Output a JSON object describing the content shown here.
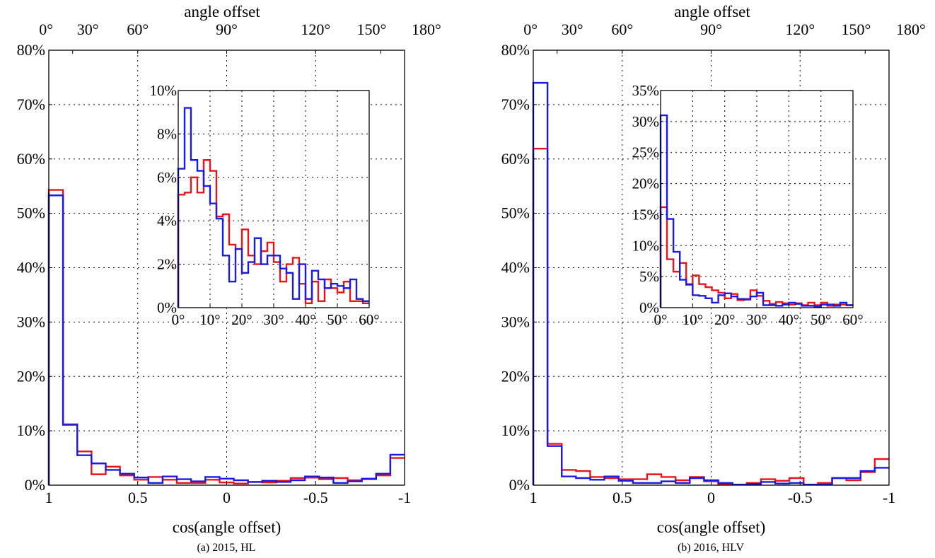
{
  "colors": {
    "red": "#e8141b",
    "blue": "#1a1ae6"
  },
  "chart_data": [
    {
      "type": "line",
      "caption": "(a) 2015, HL",
      "xlabel": "cos(angle offset)",
      "top_xlabel": "angle offset",
      "xlim": [
        1,
        -1
      ],
      "ylim": [
        0,
        80
      ],
      "x_ticks": [
        "1",
        "0.5",
        "0",
        "-0.5",
        "-1"
      ],
      "x_tick_values": [
        1,
        0.5,
        0,
        -0.5,
        -1
      ],
      "top_ticks": [
        "0°",
        "30°",
        "60°",
        "90°",
        "120°",
        "150°",
        "180°"
      ],
      "top_tick_degrees": [
        0,
        30,
        60,
        90,
        120,
        150,
        180
      ],
      "y_ticks": [
        "0%",
        "10%",
        "20%",
        "30%",
        "40%",
        "50%",
        "60%",
        "70%",
        "80%"
      ],
      "y_tick_values": [
        0,
        10,
        20,
        30,
        40,
        50,
        60,
        70,
        80
      ],
      "bin_width": 0.08,
      "grid": true,
      "series": [
        {
          "color": "red",
          "values": [
            54.3,
            11.2,
            6.2,
            2.0,
            3.4,
            1.8,
            1.0,
            1.5,
            1.0,
            0.4,
            0.4,
            1.0,
            0.5,
            0.3,
            0.6,
            0.5,
            0.8,
            1.3,
            1.4,
            1.1,
            1.3,
            0.9,
            1.1,
            1.8,
            5.0
          ]
        },
        {
          "color": "blue",
          "values": [
            53.3,
            11.1,
            5.5,
            4.0,
            2.8,
            2.1,
            1.4,
            0.4,
            1.6,
            1.1,
            0.7,
            1.5,
            1.2,
            0.9,
            0.6,
            0.8,
            0.6,
            0.9,
            1.6,
            1.4,
            0.4,
            0.7,
            1.2,
            2.1,
            5.6
          ]
        }
      ],
      "inset": {
        "xlim": [
          0,
          60
        ],
        "ylim": [
          0,
          10
        ],
        "x_ticks": [
          "0°",
          "10°",
          "20°",
          "30°",
          "40°",
          "50°",
          "60°"
        ],
        "x_tick_values": [
          0,
          10,
          20,
          30,
          40,
          50,
          60
        ],
        "y_ticks": [
          "0%",
          "2%",
          "4%",
          "6%",
          "8%",
          "10%"
        ],
        "y_tick_values": [
          0,
          2,
          4,
          6,
          8,
          10
        ],
        "bin_width": 2,
        "series": [
          {
            "color": "red",
            "values": [
              5.2,
              5.3,
              6.0,
              5.3,
              6.8,
              6.3,
              4.2,
              4.3,
              2.9,
              2.7,
              3.6,
              2.4,
              2.0,
              2.6,
              3.0,
              2.1,
              1.2,
              2.0,
              2.3,
              1.1,
              0.2,
              1.2,
              0.3,
              1.3,
              0.9,
              0.7,
              1.2,
              0.3,
              0.3,
              0.2
            ]
          },
          {
            "color": "blue",
            "values": [
              6.4,
              9.2,
              6.8,
              6.3,
              5.6,
              4.8,
              4.1,
              2.4,
              1.2,
              2.7,
              1.6,
              2.1,
              3.2,
              2.0,
              2.4,
              2.4,
              1.8,
              1.6,
              0.4,
              2.0,
              0.4,
              1.7,
              1.3,
              0.9,
              1.1,
              1.0,
              0.9,
              1.3,
              0.4,
              0.3
            ]
          }
        ]
      }
    },
    {
      "type": "line",
      "caption": "(b) 2016, HLV",
      "xlabel": "cos(angle offset)",
      "top_xlabel": "angle offset",
      "xlim": [
        1,
        -1
      ],
      "ylim": [
        0,
        80
      ],
      "x_ticks": [
        "1",
        "0.5",
        "0",
        "-0.5",
        "-1"
      ],
      "x_tick_values": [
        1,
        0.5,
        0,
        -0.5,
        -1
      ],
      "top_ticks": [
        "0°",
        "30°",
        "60°",
        "90°",
        "120°",
        "150°",
        "180°"
      ],
      "top_tick_degrees": [
        0,
        30,
        60,
        90,
        120,
        150,
        180
      ],
      "y_ticks": [
        "0%",
        "10%",
        "20%",
        "30%",
        "40%",
        "50%",
        "60%",
        "70%",
        "80%"
      ],
      "y_tick_values": [
        0,
        10,
        20,
        30,
        40,
        50,
        60,
        70,
        80
      ],
      "bin_width": 0.08,
      "grid": true,
      "series": [
        {
          "color": "red",
          "values": [
            61.9,
            7.6,
            2.8,
            2.6,
            1.5,
            1.3,
            1.1,
            1.1,
            2.0,
            1.5,
            0.9,
            1.5,
            0.7,
            0.2,
            0.1,
            0.4,
            1.1,
            0.8,
            1.3,
            0.1,
            0.4,
            1.3,
            0.9,
            2.4,
            4.8
          ]
        },
        {
          "color": "blue",
          "values": [
            74.0,
            7.2,
            1.6,
            1.3,
            1.0,
            1.6,
            0.8,
            0.4,
            0.4,
            0.7,
            0.4,
            1.3,
            0.9,
            0.4,
            0.1,
            0.2,
            0.6,
            0.3,
            0.4,
            0.1,
            0.1,
            1.3,
            1.3,
            2.6,
            3.2
          ]
        }
      ],
      "inset": {
        "xlim": [
          0,
          60
        ],
        "ylim": [
          0,
          35
        ],
        "x_ticks": [
          "0°",
          "10°",
          "20°",
          "30°",
          "40°",
          "50°",
          "60°"
        ],
        "x_tick_values": [
          0,
          10,
          20,
          30,
          40,
          50,
          60
        ],
        "y_ticks": [
          "0%",
          "5%",
          "10%",
          "15%",
          "20%",
          "25%",
          "30%",
          "35%"
        ],
        "y_tick_values": [
          0,
          5,
          10,
          15,
          20,
          25,
          30,
          35
        ],
        "bin_width": 2,
        "series": [
          {
            "color": "red",
            "values": [
              16.2,
              7.8,
              5.8,
              7.2,
              3.8,
              5.2,
              3.8,
              3.3,
              2.8,
              2.4,
              1.5,
              2.2,
              1.2,
              1.4,
              2.8,
              1.9,
              1.1,
              0.6,
              0.9,
              0.7,
              0.5,
              0.7,
              0.4,
              0.8,
              0.4,
              0.8,
              0.3,
              0.5,
              0.5,
              0.4
            ]
          },
          {
            "color": "blue",
            "values": [
              31.0,
              14.3,
              9.0,
              4.5,
              3.7,
              2.0,
              1.9,
              1.5,
              0.8,
              2.0,
              2.3,
              1.8,
              1.4,
              1.3,
              1.8,
              2.4,
              0.4,
              0.4,
              0.3,
              0.5,
              0.8,
              0.6,
              0.3,
              0.3,
              0.2,
              0.5,
              0.5,
              0.3,
              0.8,
              0.4
            ]
          }
        ]
      }
    }
  ]
}
